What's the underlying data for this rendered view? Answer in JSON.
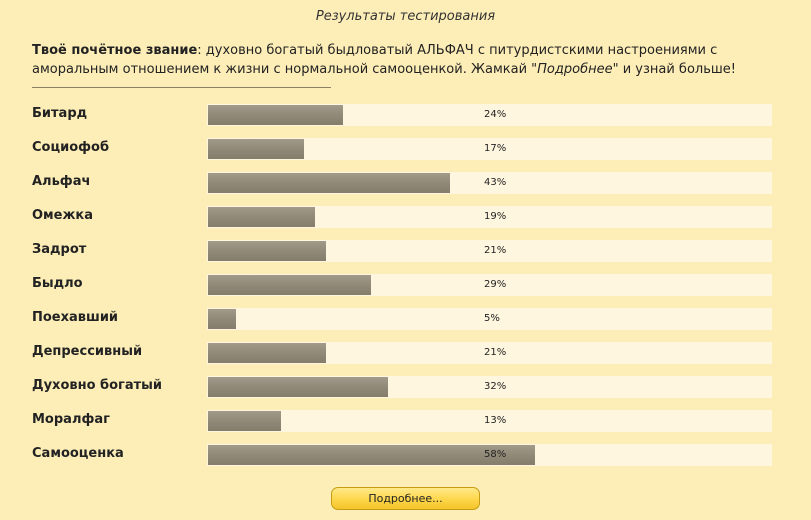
{
  "header": {
    "title": "Результаты тестирования"
  },
  "summary": {
    "label": "Твоё почётное звание",
    "text_before": ": духовно богатый быдловатый АЛЬФАЧ с питурдистскими настроениями с аморальным отношением к жизни с нормальной самооценкой. Жамкай \"",
    "more_word": "Подробнее",
    "text_after": "\" и узнай больше!"
  },
  "chart_data": {
    "type": "bar",
    "orientation": "horizontal",
    "categories": [
      "Битард",
      "Социофоб",
      "Альфач",
      "Омежка",
      "Задрот",
      "Быдло",
      "Поехавший",
      "Депрессивный",
      "Духовно богатый",
      "Моралфаг",
      "Самооценка"
    ],
    "values": [
      24,
      17,
      43,
      19,
      21,
      29,
      5,
      21,
      32,
      13,
      58
    ],
    "value_labels": [
      "24%",
      "17%",
      "43%",
      "19%",
      "21%",
      "29%",
      "5%",
      "21%",
      "32%",
      "13%",
      "58%"
    ],
    "xlim": [
      0,
      100
    ],
    "bar_color": "#938b79",
    "track_color": "#fff6df"
  },
  "actions": {
    "more_button": "Подробнее..."
  },
  "colors": {
    "background": "#fdeeb8",
    "button": "#fdd64a"
  }
}
